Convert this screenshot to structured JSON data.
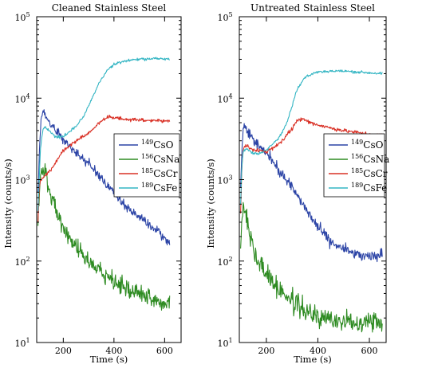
{
  "chart_data": [
    {
      "type": "line",
      "title": "Cleaned Stainless Steel",
      "xlabel": "Time (s)",
      "ylabel": "Intensity (counts/s)",
      "xlim": [
        95,
        665
      ],
      "ylim": [
        10,
        100000
      ],
      "yscale": "log",
      "xticks": [
        200,
        400,
        600
      ],
      "yticks": [
        {
          "value": 10,
          "base": "10",
          "exp": "1"
        },
        {
          "value": 100,
          "base": "10",
          "exp": "2"
        },
        {
          "value": 1000,
          "base": "10",
          "exp": "3"
        },
        {
          "value": 10000,
          "base": "10",
          "exp": "4"
        },
        {
          "value": 100000,
          "base": "10",
          "exp": "5"
        }
      ],
      "legend_position": "center-right",
      "series": [
        {
          "name": "CsO",
          "mass": "149",
          "color": "#2c44a6",
          "x": [
            100,
            110,
            115,
            120,
            130,
            150,
            180,
            200,
            250,
            300,
            350,
            400,
            450,
            500,
            550,
            600,
            620
          ],
          "y": [
            700,
            4500,
            6500,
            6600,
            6000,
            4800,
            3800,
            3000,
            2100,
            1600,
            1050,
            700,
            450,
            350,
            260,
            190,
            160
          ],
          "noise": 0.1
        },
        {
          "name": "CsNa",
          "mass": "156",
          "color": "#2e8b22",
          "x": [
            100,
            110,
            115,
            120,
            130,
            140,
            150,
            170,
            200,
            250,
            300,
            350,
            400,
            450,
            500,
            550,
            600,
            620
          ],
          "y": [
            280,
            1000,
            1350,
            1400,
            1200,
            850,
            600,
            420,
            250,
            150,
            100,
            75,
            58,
            48,
            40,
            33,
            30,
            33
          ],
          "noise": 0.18
        },
        {
          "name": "CsCr",
          "mass": "185",
          "color": "#d93025",
          "x": [
            100,
            105,
            110,
            130,
            150,
            200,
            250,
            300,
            330,
            360,
            380,
            400,
            450,
            500,
            550,
            600,
            620
          ],
          "y": [
            300,
            800,
            1000,
            1150,
            1300,
            2300,
            3000,
            3700,
            4600,
            5600,
            5900,
            5700,
            5500,
            5400,
            5300,
            5200,
            5300
          ],
          "noise": 0.04
        },
        {
          "name": "CsFe",
          "mass": "189",
          "color": "#33b5c3",
          "x": [
            100,
            110,
            120,
            130,
            150,
            170,
            200,
            250,
            280,
            300,
            320,
            340,
            360,
            380,
            400,
            450,
            500,
            550,
            600,
            620
          ],
          "y": [
            400,
            2500,
            4200,
            4400,
            3800,
            3300,
            3400,
            4500,
            6000,
            8000,
            11000,
            15000,
            19000,
            23000,
            26000,
            29000,
            30000,
            30500,
            30500,
            30000
          ],
          "noise": 0.03
        }
      ]
    },
    {
      "type": "line",
      "title": "Untreated Stainless Steel",
      "xlabel": "Time (s)",
      "ylabel": "Intensity (counts/s)",
      "xlim": [
        95,
        665
      ],
      "ylim": [
        10,
        100000
      ],
      "yscale": "log",
      "xticks": [
        200,
        400,
        600
      ],
      "yticks": [
        {
          "value": 10,
          "base": "10",
          "exp": "1"
        },
        {
          "value": 100,
          "base": "10",
          "exp": "2"
        },
        {
          "value": 1000,
          "base": "10",
          "exp": "3"
        },
        {
          "value": 10000,
          "base": "10",
          "exp": "4"
        },
        {
          "value": 100000,
          "base": "10",
          "exp": "5"
        }
      ],
      "legend_position": "center-right",
      "series": [
        {
          "name": "CsO",
          "mass": "149",
          "color": "#2c44a6",
          "x": [
            100,
            105,
            110,
            115,
            120,
            130,
            150,
            200,
            250,
            300,
            350,
            400,
            450,
            500,
            550,
            600,
            650
          ],
          "y": [
            800,
            2500,
            4000,
            4700,
            4500,
            3800,
            3000,
            2200,
            1300,
            800,
            450,
            260,
            170,
            140,
            120,
            110,
            120
          ],
          "noise": 0.12
        },
        {
          "name": "CsNa",
          "mass": "156",
          "color": "#2e8b22",
          "x": [
            100,
            105,
            110,
            120,
            130,
            150,
            200,
            250,
            300,
            350,
            400,
            450,
            500,
            550,
            600,
            650
          ],
          "y": [
            150,
            320,
            420,
            380,
            260,
            130,
            70,
            45,
            32,
            25,
            20,
            19,
            18,
            18,
            19,
            18
          ],
          "noise": 0.22
        },
        {
          "name": "CsCr",
          "mass": "185",
          "color": "#d93025",
          "x": [
            100,
            105,
            110,
            120,
            130,
            150,
            200,
            250,
            300,
            320,
            340,
            360,
            400,
            450,
            500,
            550,
            600,
            650
          ],
          "y": [
            400,
            1500,
            2300,
            2600,
            2500,
            2300,
            2200,
            2700,
            4300,
            5300,
            5600,
            5200,
            4700,
            4300,
            4000,
            3800,
            3600,
            3500
          ],
          "noise": 0.04
        },
        {
          "name": "CsFe",
          "mass": "189",
          "color": "#33b5c3",
          "x": [
            100,
            105,
            110,
            120,
            130,
            150,
            180,
            200,
            250,
            280,
            300,
            320,
            350,
            380,
            400,
            450,
            500,
            550,
            600,
            650
          ],
          "y": [
            500,
            1500,
            2200,
            2400,
            2300,
            2100,
            2100,
            2300,
            3300,
            5000,
            8000,
            13000,
            18000,
            20000,
            21000,
            21500,
            21500,
            21000,
            20500,
            20000
          ],
          "noise": 0.03
        }
      ]
    }
  ]
}
